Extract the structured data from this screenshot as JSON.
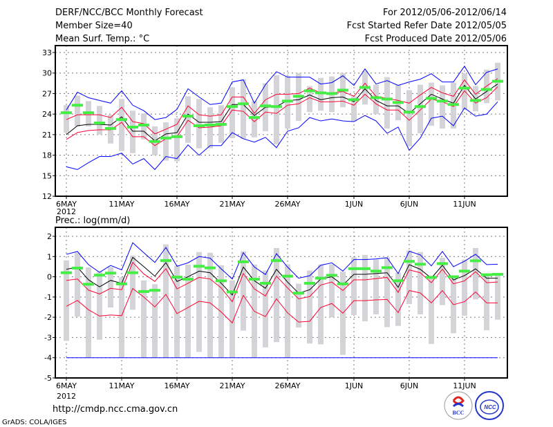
{
  "header": {
    "title": "DERF/NCC/BCC Monthly Forecast",
    "member_size": "Member Size=40",
    "variable": "Mean Surf. Temp.: °C",
    "period": "For 2012/05/06-2012/06/14",
    "started": "Fcst Started Refer Date 2012/05/05",
    "produced": "Fcst Produced Date 2012/05/06"
  },
  "footer": {
    "url": "http://cmdp.ncc.cma.gov.cn",
    "credit": "GrADS: COLA/IGES",
    "logo_bcc": "BCC",
    "logo_ncc": "NCC"
  },
  "colors": {
    "max_min": "#0000ff",
    "spread": "#ff0033",
    "mean": "#000000",
    "obs": "#44ee44",
    "range": "#d4d4d8"
  },
  "chart_data": [
    {
      "type": "line",
      "title": "Mean Surf. Temp.: °C",
      "xlabel": "",
      "ylabel": "°C",
      "x_ticks": [
        {
          "day": 0,
          "label": "6MAY"
        },
        {
          "day": 5,
          "label": "11MAY"
        },
        {
          "day": 10,
          "label": "16MAY"
        },
        {
          "day": 15,
          "label": "21MAY"
        },
        {
          "day": 20,
          "label": "26MAY"
        },
        {
          "day": 26,
          "label": "1JUN"
        },
        {
          "day": 31,
          "label": "6JUN"
        },
        {
          "day": 36,
          "label": "11JUN"
        }
      ],
      "year_label": "2012",
      "y_ticks": [
        12,
        15,
        18,
        21,
        24,
        27,
        30,
        33
      ],
      "ylim": [
        12,
        34
      ],
      "grid": true,
      "series": [
        {
          "name": "range_high",
          "values": [
            25.3,
            26.7,
            25.9,
            25.2,
            23.9,
            26.2,
            24.5,
            24.1,
            22.2,
            22.8,
            23.4,
            26.6,
            26.2,
            25.0,
            25.3,
            27.9,
            29.1,
            25.9,
            28.5,
            29.7,
            29.6,
            30.0,
            28.1,
            29.3,
            29.5,
            30.0,
            26.6,
            30.3,
            28.3,
            29.4,
            28.3,
            27.5,
            28.3,
            28.6,
            28.2,
            28.6,
            30.0,
            28.1,
            30.5,
            31.5
          ]
        },
        {
          "name": "range_low",
          "values": [
            21.3,
            22.2,
            22.2,
            21.0,
            19.7,
            18.6,
            18.3,
            20.3,
            18.0,
            17.2,
            17.1,
            19.8,
            19.0,
            19.0,
            19.8,
            20.5,
            20.4,
            20.6,
            21.5,
            19.6,
            21.9,
            23.0,
            24.3,
            24.5,
            24.3,
            25.0,
            22.9,
            25.4,
            24.0,
            21.9,
            23.1,
            19.3,
            21.2,
            22.3,
            21.9,
            21.9,
            24.6,
            24.4,
            25.6,
            26.0
          ]
        },
        {
          "name": "max",
          "values": [
            24.6,
            27.2,
            26.4,
            26.0,
            25.6,
            27.4,
            25.3,
            24.5,
            23.2,
            23.5,
            24.7,
            27.7,
            26.5,
            25.4,
            25.6,
            28.7,
            29.0,
            25.6,
            28.3,
            30.2,
            29.4,
            29.4,
            29.4,
            28.4,
            28.6,
            29.6,
            28.2,
            30.6,
            28.4,
            28.9,
            28.2,
            28.7,
            29.1,
            29.9,
            28.7,
            28.7,
            31.0,
            28.3,
            30.1,
            30.6
          ]
        },
        {
          "name": "upper",
          "values": [
            23.2,
            23.9,
            23.9,
            23.9,
            23.5,
            25.0,
            22.9,
            22.6,
            21.1,
            21.8,
            22.5,
            25.2,
            23.9,
            23.7,
            23.9,
            26.5,
            26.5,
            24.1,
            26.1,
            26.9,
            26.9,
            27.0,
            27.8,
            27.1,
            27.1,
            27.3,
            26.6,
            28.5,
            26.6,
            26.3,
            26.0,
            25.6,
            26.8,
            27.9,
            27.1,
            26.6,
            29.0,
            26.9,
            28.1,
            29.2
          ]
        },
        {
          "name": "mean",
          "values": [
            21.0,
            22.3,
            22.5,
            22.5,
            22.4,
            23.6,
            21.5,
            21.5,
            20.1,
            21.1,
            21.3,
            24.0,
            22.8,
            22.8,
            22.9,
            25.4,
            25.4,
            23.8,
            25.0,
            25.1,
            26.0,
            26.1,
            26.8,
            26.1,
            26.4,
            26.5,
            25.8,
            27.7,
            26.0,
            25.2,
            25.2,
            24.1,
            25.5,
            26.9,
            26.2,
            25.6,
            28.2,
            26.2,
            27.3,
            28.4
          ]
        },
        {
          "name": "lower",
          "values": [
            20.3,
            21.3,
            21.6,
            21.7,
            21.7,
            22.8,
            20.7,
            20.7,
            19.4,
            20.4,
            20.7,
            23.1,
            22.0,
            22.1,
            22.3,
            24.6,
            24.4,
            22.9,
            24.3,
            24.1,
            25.3,
            25.5,
            26.4,
            25.8,
            25.8,
            25.9,
            25.3,
            26.9,
            25.5,
            24.6,
            24.6,
            23.1,
            24.6,
            26.2,
            25.8,
            25.1,
            27.4,
            25.6,
            26.4,
            28.0
          ]
        },
        {
          "name": "min",
          "values": [
            16.3,
            15.9,
            16.9,
            17.8,
            17.8,
            18.3,
            16.7,
            17.5,
            15.9,
            17.8,
            17.5,
            19.5,
            18.0,
            19.4,
            19.4,
            21.3,
            20.4,
            19.9,
            20.6,
            19.1,
            21.5,
            22.0,
            23.5,
            23.0,
            23.3,
            23.0,
            22.9,
            23.8,
            23.0,
            21.2,
            22.1,
            18.7,
            20.5,
            23.4,
            23.7,
            22.3,
            24.9,
            23.7,
            24.0,
            25.8
          ]
        },
        {
          "name": "observed",
          "values": [
            24.2,
            25.3,
            24.2,
            22.7,
            21.9,
            23.2,
            22.1,
            22.4,
            20.0,
            20.5,
            20.7,
            23.7,
            22.3,
            22.4,
            22.5,
            25.1,
            25.5,
            23.5,
            25.2,
            25.1,
            25.9,
            26.6,
            27.4,
            27.1,
            27.0,
            27.5,
            26.1,
            27.9,
            26.4,
            26.2,
            25.7,
            24.3,
            25.1,
            26.3,
            25.9,
            25.4,
            27.8,
            26.0,
            27.6,
            28.8
          ]
        }
      ]
    },
    {
      "type": "line",
      "title": "Prec.: log(mm/d)",
      "xlabel": "",
      "ylabel": "log(mm/d)",
      "x_ticks": [
        {
          "day": 0,
          "label": "6MAY"
        },
        {
          "day": 5,
          "label": "11MAY"
        },
        {
          "day": 10,
          "label": "16MAY"
        },
        {
          "day": 15,
          "label": "21MAY"
        },
        {
          "day": 20,
          "label": "26MAY"
        },
        {
          "day": 26,
          "label": "1JUN"
        },
        {
          "day": 31,
          "label": "6JUN"
        },
        {
          "day": 36,
          "label": "11JUN"
        }
      ],
      "year_label": "2012",
      "y_ticks": [
        -5,
        -4,
        -3,
        -2,
        -1,
        0,
        1,
        2
      ],
      "ylim": [
        -5,
        2.44
      ],
      "grid": true,
      "series": [
        {
          "name": "range_high",
          "values": [
            0.81,
            1.19,
            0.46,
            0.25,
            0.48,
            -0.03,
            1.05,
            -0.18,
            -0.37,
            1.6,
            0.54,
            0.6,
            1.22,
            1.19,
            0.57,
            -0.18,
            1.26,
            0.6,
            0.31,
            1.42,
            0.62,
            -0.34,
            0.31,
            0.6,
            0.62,
            0.25,
            0.96,
            1.08,
            0.85,
            0.96,
            0.2,
            1.3,
            1.22,
            0.05,
            0.94,
            0.05,
            0.85,
            1.42,
            0.14,
            0.08
          ]
        },
        {
          "name": "range_low",
          "values": [
            -3.17,
            -1.97,
            -4,
            -3.11,
            -1.52,
            -4,
            -1.63,
            -4,
            -4,
            -4,
            -4,
            -4,
            -3.72,
            -4,
            -4,
            -4,
            -2.66,
            -4,
            -3.49,
            -3.23,
            -4,
            -2.51,
            -3.3,
            -3.34,
            -2.0,
            -3.86,
            -1.89,
            -2.2,
            -1.86,
            -2.49,
            -2.43,
            -1.35,
            -1.86,
            -3.32,
            -1.4,
            -2.79,
            -1.92,
            -1.12,
            -2.64,
            -2.12
          ]
        },
        {
          "name": "max",
          "values": [
            1.11,
            1.25,
            0.6,
            0.22,
            0.56,
            0.34,
            1.68,
            1.19,
            0.71,
            1.45,
            0.52,
            0.69,
            1.0,
            0.92,
            0.39,
            -0.11,
            1.19,
            0.48,
            0.11,
            1.14,
            0.48,
            -0.07,
            0.05,
            0.57,
            0.69,
            0.28,
            0.85,
            0.85,
            0.88,
            0.94,
            0.16,
            1.26,
            1.08,
            0.54,
            1.25,
            0.5,
            0.77,
            1.11,
            0.6,
            0.62
          ]
        },
        {
          "name": "upper",
          "values": [
            -0.18,
            -0.11,
            -0.66,
            -0.85,
            -0.57,
            -0.64,
            0.71,
            0.14,
            -0.23,
            0.4,
            -0.6,
            -0.32,
            -0.03,
            -0.11,
            -0.55,
            -1.23,
            0.16,
            -0.6,
            -0.95,
            0.03,
            -0.55,
            -1.09,
            -0.98,
            -0.41,
            -0.26,
            -0.68,
            -0.15,
            -0.15,
            -0.09,
            -0.03,
            -0.77,
            0.34,
            0.2,
            -0.29,
            0.37,
            -0.35,
            -0.2,
            0.25,
            -0.29,
            -0.26
          ]
        },
        {
          "name": "mean",
          "values": [
            0.37,
            0.48,
            -0.15,
            -0.5,
            -0.18,
            -0.32,
            0.96,
            0.5,
            0.03,
            0.7,
            -0.23,
            0,
            0.28,
            0.2,
            -0.32,
            -0.9,
            0.48,
            -0.2,
            -0.57,
            0.37,
            -0.26,
            -0.81,
            -0.64,
            -0.11,
            0,
            -0.41,
            0.12,
            0.12,
            0.16,
            0.2,
            -0.52,
            0.6,
            0.37,
            -0.07,
            0.57,
            -0.16,
            0.06,
            0.39,
            -0.07,
            -0.07
          ]
        },
        {
          "name": "lower",
          "values": [
            -1.46,
            -1.17,
            -1.63,
            -1.94,
            -1.89,
            -1.92,
            -0.58,
            -1.0,
            -1.49,
            -0.87,
            -1.82,
            -1.52,
            -1.21,
            -1.29,
            -1.74,
            -2.28,
            -0.92,
            -1.71,
            -1.97,
            -1.09,
            -1.78,
            -2.24,
            -2.2,
            -1.52,
            -1.32,
            -1.8,
            -1.18,
            -1.18,
            -1.14,
            -1.12,
            -1.77,
            -0.68,
            -0.8,
            -1.29,
            -0.68,
            -1.38,
            -1.23,
            -0.75,
            -1.29,
            -1.29
          ]
        },
        {
          "name": "min",
          "values": [
            -4,
            -4,
            -4,
            -4,
            -4,
            -4,
            -4,
            -4,
            -4,
            -4,
            -4,
            -4,
            -4,
            -4,
            -4,
            -4,
            -4,
            -4,
            -4,
            -4,
            -4,
            -4,
            -4,
            -4,
            -4,
            -4,
            -4,
            -4,
            -4,
            -4,
            -4,
            -4,
            -4,
            -4,
            -4,
            -4,
            -4,
            -4,
            -4,
            -4
          ]
        },
        {
          "name": "observed",
          "values": [
            0.2,
            0.43,
            -0.37,
            0.08,
            0.18,
            -0.35,
            0.2,
            -0.73,
            -0.67,
            0.8,
            -0.02,
            -0.12,
            0.52,
            0.44,
            -0.2,
            -0.75,
            0.74,
            -0.12,
            -0.32,
            0.8,
            0.03,
            -0.81,
            -0.32,
            -0.07,
            0.07,
            -0.35,
            0.4,
            0.4,
            0.28,
            0.45,
            -0.2,
            0.76,
            0.62,
            -0.03,
            0.65,
            0,
            0.28,
            0.79,
            0.1,
            0.12
          ]
        }
      ]
    }
  ]
}
